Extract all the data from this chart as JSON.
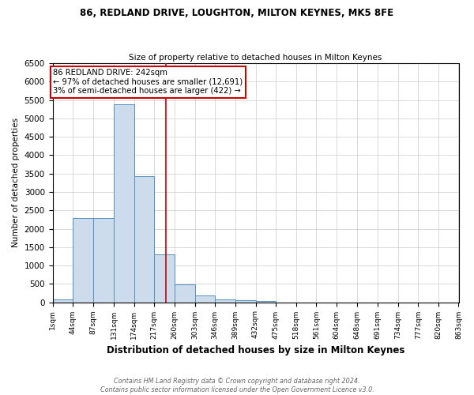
{
  "title1": "86, REDLAND DRIVE, LOUGHTON, MILTON KEYNES, MK5 8FE",
  "title2": "Size of property relative to detached houses in Milton Keynes",
  "xlabel": "Distribution of detached houses by size in Milton Keynes",
  "ylabel": "Number of detached properties",
  "bin_edges": [
    1,
    44,
    87,
    131,
    174,
    217,
    260,
    303,
    346,
    389,
    432,
    475,
    518,
    561,
    604,
    648,
    691,
    734,
    777,
    820,
    863
  ],
  "bar_heights": [
    80,
    2280,
    2280,
    5390,
    3420,
    1300,
    490,
    185,
    80,
    55,
    40,
    0,
    0,
    0,
    0,
    0,
    0,
    0,
    0,
    0
  ],
  "bar_color": "#cddcec",
  "bar_edge_color": "#5590bb",
  "property_size": 242,
  "property_label": "86 REDLAND DRIVE: 242sqm",
  "annotation_line1": "← 97% of detached houses are smaller (12,691)",
  "annotation_line2": "3% of semi-detached houses are larger (422) →",
  "vline_color": "#cc0000",
  "ylim": [
    0,
    6500
  ],
  "yticks": [
    0,
    500,
    1000,
    1500,
    2000,
    2500,
    3000,
    3500,
    4000,
    4500,
    5000,
    5500,
    6000,
    6500
  ],
  "footnote1": "Contains HM Land Registry data © Crown copyright and database right 2024.",
  "footnote2": "Contains public sector information licensed under the Open Government Licence v3.0.",
  "annotation_box_color": "#ffffff",
  "annotation_box_edge": "#cc0000",
  "bg_color": "#ffffff",
  "grid_color": "#cccccc",
  "title1_fontsize": 8.5,
  "title2_fontsize": 8.0
}
